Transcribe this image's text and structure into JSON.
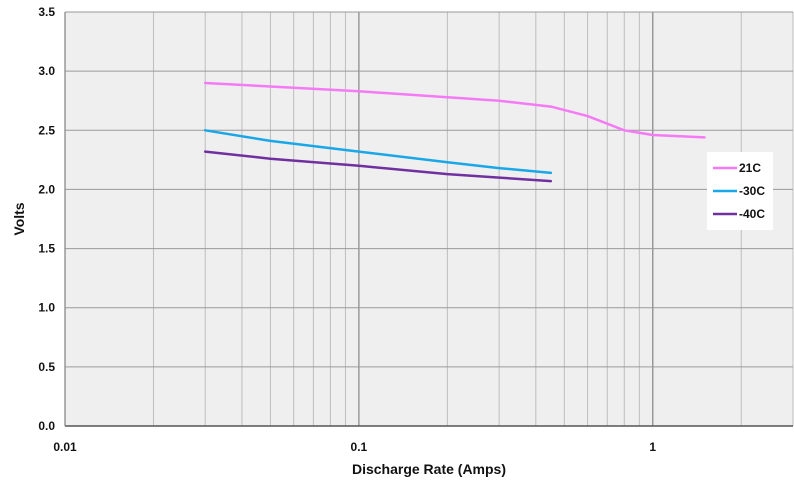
{
  "chart_data": {
    "type": "line",
    "title": "",
    "xlabel": "Discharge Rate (Amps)",
    "ylabel": "Volts",
    "xscale": "log",
    "xlim": [
      0.01,
      3
    ],
    "ylim": [
      0.0,
      3.5
    ],
    "x_tick_labels": [
      "0.01",
      "0.1",
      "1"
    ],
    "y_tick_labels": [
      "0.0",
      "0.5",
      "1.0",
      "1.5",
      "2.0",
      "2.5",
      "3.0",
      "3.5"
    ],
    "grid": true,
    "legend": "right",
    "series": [
      {
        "name": "21C",
        "color": "#f57af5",
        "points": [
          [
            0.03,
            2.9
          ],
          [
            0.05,
            2.87
          ],
          [
            0.1,
            2.83
          ],
          [
            0.2,
            2.78
          ],
          [
            0.3,
            2.75
          ],
          [
            0.45,
            2.7
          ],
          [
            0.6,
            2.62
          ],
          [
            0.8,
            2.5
          ],
          [
            1.0,
            2.46
          ],
          [
            1.5,
            2.44
          ]
        ]
      },
      {
        "name": "-30C",
        "color": "#1aa7e8",
        "points": [
          [
            0.03,
            2.5
          ],
          [
            0.05,
            2.41
          ],
          [
            0.1,
            2.32
          ],
          [
            0.2,
            2.23
          ],
          [
            0.3,
            2.18
          ],
          [
            0.45,
            2.14
          ]
        ]
      },
      {
        "name": "-40C",
        "color": "#7030a0",
        "points": [
          [
            0.03,
            2.32
          ],
          [
            0.05,
            2.26
          ],
          [
            0.1,
            2.2
          ],
          [
            0.2,
            2.13
          ],
          [
            0.3,
            2.1
          ],
          [
            0.45,
            2.07
          ]
        ]
      }
    ]
  }
}
